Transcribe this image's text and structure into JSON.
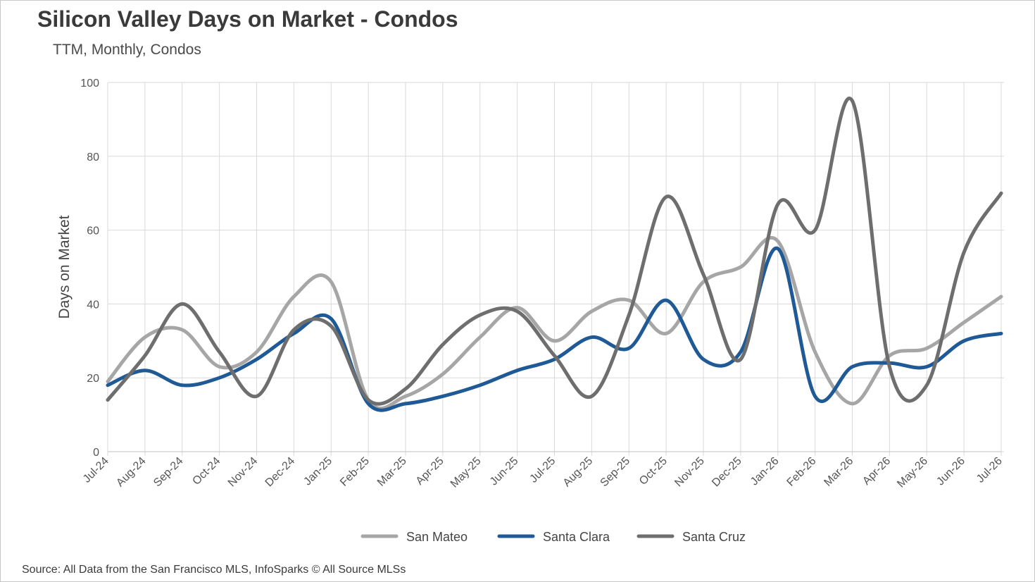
{
  "title": "Silicon Valley Days on Market - Condos",
  "subtitle": "TTM, Monthly, Condos",
  "source": "Source: All Data from the San Francisco MLS, InfoSparks © All Source MLSs",
  "chart_data": {
    "type": "line",
    "title": "Silicon Valley Days on Market - Condos",
    "subtitle": "TTM, Monthly, Condos",
    "xlabel": "",
    "ylabel": "Days on Market",
    "ylim": [
      0,
      100
    ],
    "yticks": [
      0,
      20,
      40,
      60,
      80,
      100
    ],
    "grid": true,
    "smooth": true,
    "legend_position": "bottom",
    "categories": [
      "Jul-24",
      "Aug-24",
      "Sep-24",
      "Oct-24",
      "Nov-24",
      "Dec-24",
      "Jan-25",
      "Feb-25",
      "Mar-25",
      "Apr-25",
      "May-25",
      "Jun-25",
      "Jul-25",
      "Aug-25",
      "Sep-25",
      "Oct-25",
      "Nov-25",
      "Dec-25",
      "Jan-26",
      "Feb-26",
      "Mar-26",
      "Apr-26",
      "May-26",
      "Jun-26",
      "Jul-26"
    ],
    "series": [
      {
        "name": "San Mateo",
        "color": "#a6a6a6",
        "values": [
          19,
          31,
          33,
          23,
          27,
          42,
          46,
          14,
          15,
          21,
          31,
          39,
          30,
          38,
          41,
          32,
          46,
          50,
          57,
          27,
          13,
          26,
          28,
          35,
          42
        ]
      },
      {
        "name": "Santa Clara",
        "color": "#1f5a96",
        "values": [
          18,
          22,
          18,
          20,
          25,
          32,
          36,
          13,
          13,
          15,
          18,
          22,
          25,
          31,
          28,
          41,
          25,
          27,
          55,
          15,
          23,
          24,
          23,
          30,
          32
        ]
      },
      {
        "name": "Santa Cruz",
        "color": "#6e6e6e",
        "values": [
          14,
          26,
          40,
          27,
          15,
          33,
          34,
          14,
          17,
          29,
          37,
          38,
          26,
          15,
          37,
          69,
          48,
          25,
          67,
          60,
          95,
          23,
          18,
          54,
          70
        ]
      }
    ]
  }
}
